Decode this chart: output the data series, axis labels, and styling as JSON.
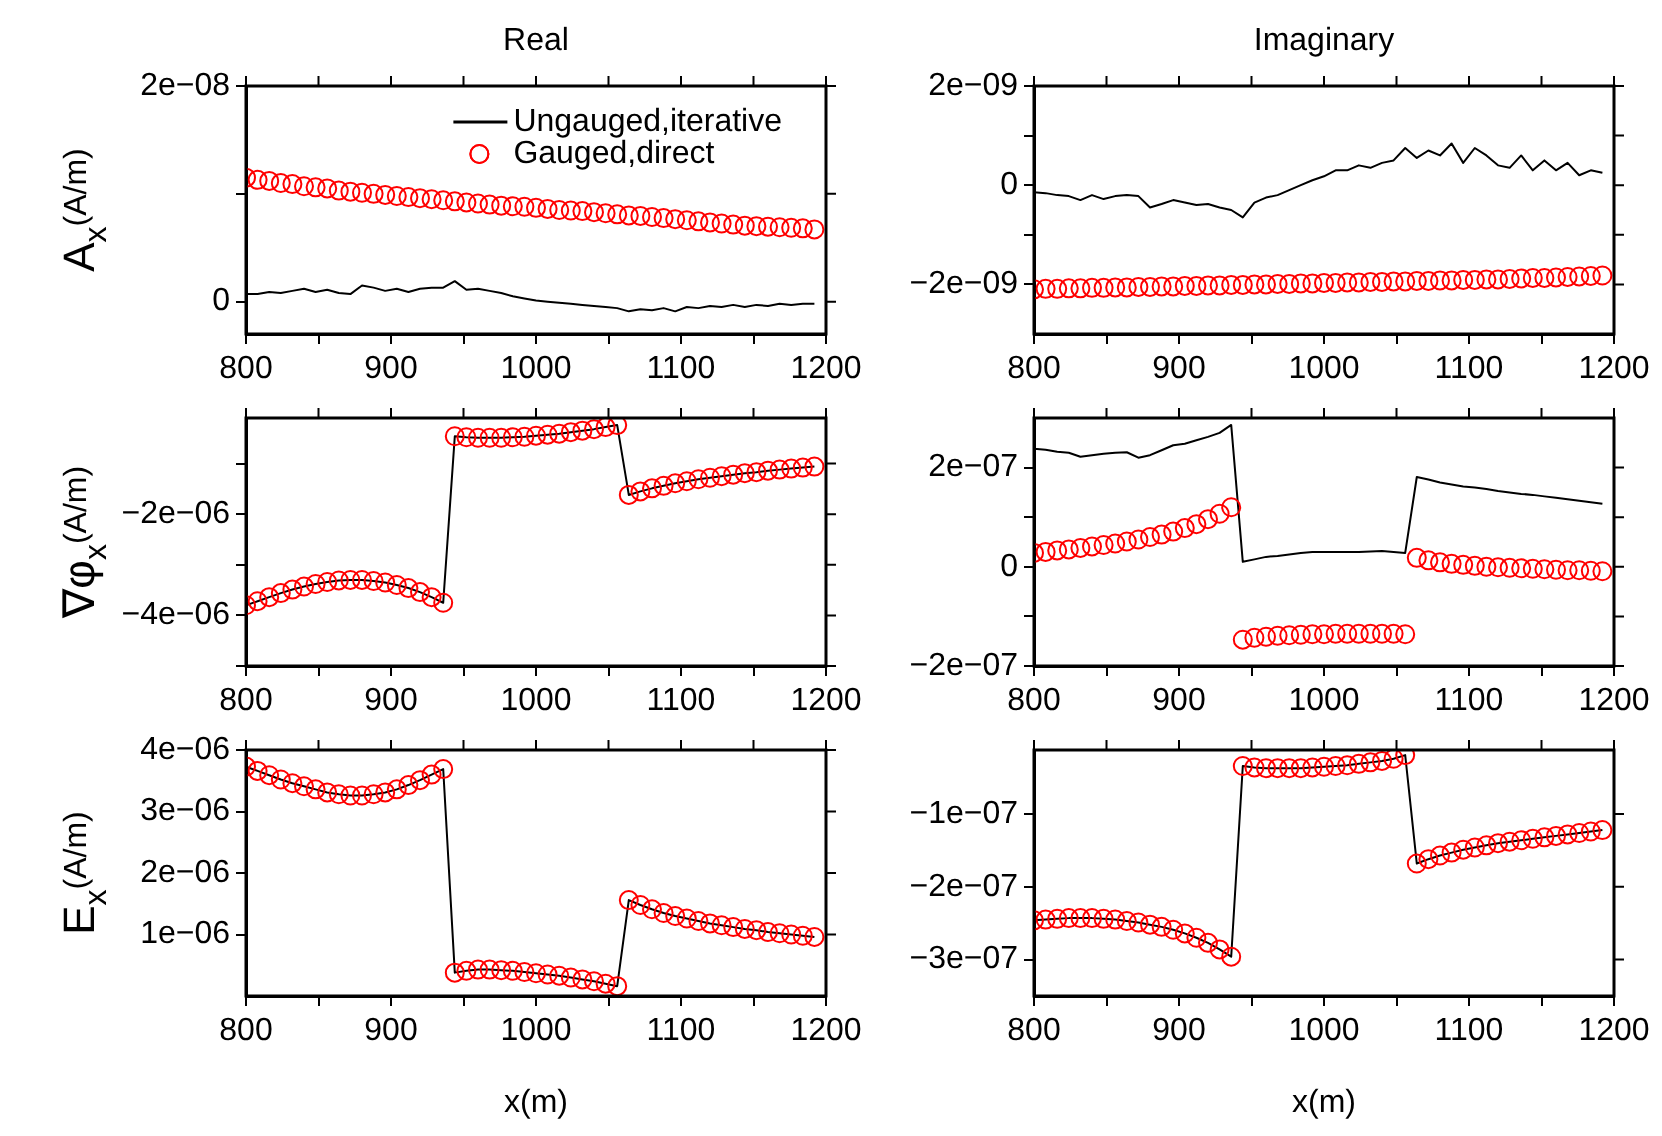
{
  "chart_data": [
    {
      "type": "line",
      "title": "Real",
      "ylabel": "A$_{x}$(A/m)",
      "legend": "top right",
      "x": [
        800,
        808,
        816,
        824,
        832,
        840,
        848,
        856,
        864,
        872,
        880,
        888,
        896,
        904,
        912,
        920,
        928,
        936,
        944,
        952,
        960,
        968,
        976,
        984,
        992,
        1000,
        1008,
        1016,
        1024,
        1032,
        1040,
        1048,
        1056,
        1064,
        1072,
        1080,
        1088,
        1096,
        1104,
        1112,
        1120,
        1128,
        1136,
        1144,
        1152,
        1160,
        1168,
        1176,
        1184,
        1192
      ],
      "xlim": [
        800,
        1200
      ],
      "xticks": [
        800,
        {
          "value": 850,
          "label": null
        },
        900,
        {
          "value": 950,
          "label": null
        },
        1000,
        {
          "value": 1050,
          "label": null
        },
        1100,
        {
          "value": 1150,
          "label": null
        },
        1200
      ],
      "ylim": [
        -3e-09,
        2e-08
      ],
      "yticks": [
        {
          "value": 0,
          "label": "0"
        },
        {
          "value": 1e-08,
          "label": null
        },
        {
          "value": 2e-08,
          "label": "2e−08"
        }
      ],
      "series": [
        {
          "name": "Ungauged,iterative",
          "type": "line",
          "color": "#000000",
          "marker": "none",
          "values": [
            7e-10,
            7e-10,
            9e-10,
            8e-10,
            1e-09,
            1.2e-09,
            9e-10,
            1.1e-09,
            8e-10,
            7e-10,
            1.5e-09,
            1.3e-09,
            1e-09,
            1.2e-09,
            9e-10,
            1.2e-09,
            1.3e-09,
            1.3e-09,
            1.9e-09,
            1.1e-09,
            1.2e-09,
            1e-09,
            8e-10,
            5e-10,
            3e-10,
            1e-10,
            0,
            -1e-10,
            -2e-10,
            -3e-10,
            -4e-10,
            -5e-10,
            -6e-10,
            -9e-10,
            -7e-10,
            -8e-10,
            -6e-10,
            -9e-10,
            -5e-10,
            -6e-10,
            -4e-10,
            -5e-10,
            -3e-10,
            -5e-10,
            -3e-10,
            -4e-10,
            -2e-10,
            -3e-10,
            -2e-10,
            -2e-10
          ]
        },
        {
          "name": "Gauged,direct",
          "type": "scatter",
          "color": "#ff0000",
          "marker": "circle",
          "values": [
            1.15e-08,
            1.13e-08,
            1.12e-08,
            1.1e-08,
            1.09e-08,
            1.07e-08,
            1.06e-08,
            1.05e-08,
            1.03e-08,
            1.02e-08,
            1.01e-08,
            1e-08,
            9.9e-09,
            9.8e-09,
            9.7e-09,
            9.6e-09,
            9.5e-09,
            9.4e-09,
            9.3e-09,
            9.2e-09,
            9.1e-09,
            9e-09,
            8.9e-09,
            8.85e-09,
            8.8e-09,
            8.7e-09,
            8.6e-09,
            8.5e-09,
            8.45e-09,
            8.4e-09,
            8.3e-09,
            8.2e-09,
            8.1e-09,
            8e-09,
            7.95e-09,
            7.85e-09,
            7.75e-09,
            7.65e-09,
            7.55e-09,
            7.45e-09,
            7.35e-09,
            7.25e-09,
            7.15e-09,
            7.05e-09,
            7e-09,
            6.95e-09,
            6.9e-09,
            6.85e-09,
            6.8e-09,
            6.7e-09
          ]
        }
      ]
    },
    {
      "type": "line",
      "title": "Imaginary",
      "x": [
        800,
        808,
        816,
        824,
        832,
        840,
        848,
        856,
        864,
        872,
        880,
        888,
        896,
        904,
        912,
        920,
        928,
        936,
        944,
        952,
        960,
        968,
        976,
        984,
        992,
        1000,
        1008,
        1016,
        1024,
        1032,
        1040,
        1048,
        1056,
        1064,
        1072,
        1080,
        1088,
        1096,
        1104,
        1112,
        1120,
        1128,
        1136,
        1144,
        1152,
        1160,
        1168,
        1176,
        1184,
        1192
      ],
      "xlim": [
        800,
        1200
      ],
      "xticks": [
        800,
        {
          "value": 850,
          "label": null
        },
        900,
        {
          "value": 950,
          "label": null
        },
        1000,
        {
          "value": 1050,
          "label": null
        },
        1100,
        {
          "value": 1150,
          "label": null
        },
        1200
      ],
      "ylim": [
        -3e-09,
        2e-09
      ],
      "yticks": [
        {
          "value": -2e-09,
          "label": "−2e−09"
        },
        {
          "value": -1e-09,
          "label": null
        },
        {
          "value": 0,
          "label": "0"
        },
        {
          "value": 1e-09,
          "label": null
        },
        {
          "value": 2e-09,
          "label": "2e−09"
        }
      ],
      "series": [
        {
          "type": "line",
          "color": "#000000",
          "marker": "none",
          "values": [
            -1.4e-10,
            -1.6e-10,
            -2e-10,
            -2.2e-10,
            -3e-10,
            -2e-10,
            -2.8e-10,
            -2.2e-10,
            -2e-10,
            -2.2e-10,
            -4.5e-10,
            -3.8e-10,
            -3e-10,
            -3.5e-10,
            -4e-10,
            -3.8e-10,
            -4.5e-10,
            -5e-10,
            -6.5e-10,
            -3.5e-10,
            -2.5e-10,
            -2e-10,
            -1e-10,
            0,
            1e-10,
            1.8e-10,
            3e-10,
            3e-10,
            4e-10,
            3.5e-10,
            4.5e-10,
            5e-10,
            7.5e-10,
            5.5e-10,
            7e-10,
            6e-10,
            8.4e-10,
            4.5e-10,
            7.5e-10,
            6e-10,
            4e-10,
            3.5e-10,
            6e-10,
            3e-10,
            5e-10,
            3e-10,
            4.5e-10,
            2e-10,
            3e-10,
            2.5e-10
          ]
        },
        {
          "type": "scatter",
          "color": "#ff0000",
          "marker": "circle",
          "values": [
            -2.1e-09,
            -2.09e-09,
            -2.09e-09,
            -2.08e-09,
            -2.08e-09,
            -2.07e-09,
            -2.07e-09,
            -2.06e-09,
            -2.06e-09,
            -2.05e-09,
            -2.05e-09,
            -2.04e-09,
            -2.04e-09,
            -2.03e-09,
            -2.03e-09,
            -2.02e-09,
            -2.02e-09,
            -2.01e-09,
            -2.01e-09,
            -2e-09,
            -2e-09,
            -1.99e-09,
            -1.99e-09,
            -1.98e-09,
            -1.98e-09,
            -1.97e-09,
            -1.97e-09,
            -1.96e-09,
            -1.96e-09,
            -1.95e-09,
            -1.95e-09,
            -1.94e-09,
            -1.94e-09,
            -1.93e-09,
            -1.93e-09,
            -1.92e-09,
            -1.92e-09,
            -1.91e-09,
            -1.91e-09,
            -1.9e-09,
            -1.9e-09,
            -1.89e-09,
            -1.88e-09,
            -1.87e-09,
            -1.87e-09,
            -1.86e-09,
            -1.85e-09,
            -1.84e-09,
            -1.83e-09,
            -1.82e-09
          ]
        }
      ]
    },
    {
      "type": "line",
      "ylabel": "∇φ$_{x}$(A/m)",
      "x": [
        800,
        808,
        816,
        824,
        832,
        840,
        848,
        856,
        864,
        872,
        880,
        888,
        896,
        904,
        912,
        920,
        928,
        936,
        944,
        952,
        960,
        968,
        976,
        984,
        992,
        1000,
        1008,
        1016,
        1024,
        1032,
        1040,
        1048,
        1056,
        1064,
        1072,
        1080,
        1088,
        1096,
        1104,
        1112,
        1120,
        1128,
        1136,
        1144,
        1152,
        1160,
        1168,
        1176,
        1184,
        1192
      ],
      "xlim": [
        800,
        1200
      ],
      "xticks": [
        800,
        {
          "value": 850,
          "label": null
        },
        900,
        {
          "value": 950,
          "label": null
        },
        1000,
        {
          "value": 1050,
          "label": null
        },
        1100,
        {
          "value": 1150,
          "label": null
        },
        1200
      ],
      "ylim": [
        -5e-06,
        -1e-07
      ],
      "yticks": [
        {
          "value": -5e-06,
          "label": null
        },
        {
          "value": -4e-06,
          "label": "−4e−06"
        },
        {
          "value": -3e-06,
          "label": null
        },
        {
          "value": -2e-06,
          "label": "−2e−06"
        },
        {
          "value": -1e-06,
          "label": null
        }
      ],
      "series": [
        {
          "type": "line",
          "color": "#000000",
          "marker": "none",
          "values": [
            -3.8e-06,
            -3.72e-06,
            -3.64e-06,
            -3.56e-06,
            -3.49e-06,
            -3.43e-06,
            -3.38e-06,
            -3.34e-06,
            -3.31e-06,
            -3.3e-06,
            -3.3e-06,
            -3.32e-06,
            -3.35e-06,
            -3.4e-06,
            -3.46e-06,
            -3.54e-06,
            -3.64e-06,
            -3.75e-06,
            -4.6e-07,
            -4.8e-07,
            -4.9e-07,
            -4.9e-07,
            -4.9e-07,
            -4.8e-07,
            -4.7e-07,
            -4.5e-07,
            -4.3e-07,
            -4.1e-07,
            -3.8e-07,
            -3.5e-07,
            -3.2e-07,
            -2.8e-07,
            -2.4e-07,
            -1.62e-06,
            -1.55e-06,
            -1.49e-06,
            -1.44e-06,
            -1.39e-06,
            -1.35e-06,
            -1.31e-06,
            -1.28e-06,
            -1.25e-06,
            -1.22e-06,
            -1.19e-06,
            -1.17e-06,
            -1.14e-06,
            -1.12e-06,
            -1.1e-06,
            -1.08e-06,
            -1.06e-06
          ]
        },
        {
          "type": "scatter",
          "color": "#ff0000",
          "marker": "circle",
          "values": [
            -3.8e-06,
            -3.72e-06,
            -3.64e-06,
            -3.56e-06,
            -3.49e-06,
            -3.43e-06,
            -3.38e-06,
            -3.34e-06,
            -3.31e-06,
            -3.3e-06,
            -3.3e-06,
            -3.32e-06,
            -3.35e-06,
            -3.4e-06,
            -3.46e-06,
            -3.54e-06,
            -3.64e-06,
            -3.75e-06,
            -4.6e-07,
            -4.8e-07,
            -4.9e-07,
            -4.9e-07,
            -4.9e-07,
            -4.8e-07,
            -4.7e-07,
            -4.5e-07,
            -4.3e-07,
            -4.1e-07,
            -3.8e-07,
            -3.5e-07,
            -3.2e-07,
            -2.8e-07,
            -2.4e-07,
            -1.62e-06,
            -1.55e-06,
            -1.49e-06,
            -1.44e-06,
            -1.39e-06,
            -1.35e-06,
            -1.31e-06,
            -1.28e-06,
            -1.25e-06,
            -1.22e-06,
            -1.19e-06,
            -1.17e-06,
            -1.14e-06,
            -1.12e-06,
            -1.1e-06,
            -1.08e-06,
            -1.06e-06
          ]
        }
      ]
    },
    {
      "type": "line",
      "x": [
        800,
        808,
        816,
        824,
        832,
        840,
        848,
        856,
        864,
        872,
        880,
        888,
        896,
        904,
        912,
        920,
        928,
        936,
        944,
        952,
        960,
        968,
        976,
        984,
        992,
        1000,
        1008,
        1016,
        1024,
        1032,
        1040,
        1048,
        1056,
        1064,
        1072,
        1080,
        1088,
        1096,
        1104,
        1112,
        1120,
        1128,
        1136,
        1144,
        1152,
        1160,
        1168,
        1176,
        1184,
        1192
      ],
      "xlim": [
        800,
        1200
      ],
      "xticks": [
        800,
        {
          "value": 850,
          "label": null
        },
        900,
        {
          "value": 950,
          "label": null
        },
        1000,
        {
          "value": 1050,
          "label": null
        },
        1100,
        {
          "value": 1150,
          "label": null
        },
        1200
      ],
      "ylim": [
        -2e-07,
        3e-07
      ],
      "yticks": [
        {
          "value": -2e-07,
          "label": "−2e−07"
        },
        {
          "value": -1e-07,
          "label": null
        },
        {
          "value": 0,
          "label": "0"
        },
        {
          "value": 1e-07,
          "label": null
        },
        {
          "value": 2e-07,
          "label": "2e−07"
        }
      ],
      "series": [
        {
          "type": "line",
          "color": "#000000",
          "marker": "none",
          "values": [
            2.38e-07,
            2.36e-07,
            2.32e-07,
            2.3e-07,
            2.22e-07,
            2.25e-07,
            2.28e-07,
            2.3e-07,
            2.31e-07,
            2.2e-07,
            2.25e-07,
            2.35e-07,
            2.45e-07,
            2.48e-07,
            2.55e-07,
            2.62e-07,
            2.7e-07,
            2.86e-07,
            1e-08,
            1.5e-08,
            2e-08,
            2.2e-08,
            2.5e-08,
            2.8e-08,
            3e-08,
            3e-08,
            3e-08,
            3e-08,
            3e-08,
            3.1e-08,
            3.2e-08,
            3e-08,
            2.8e-08,
            1.81e-07,
            1.76e-07,
            1.7e-07,
            1.66e-07,
            1.62e-07,
            1.6e-07,
            1.57e-07,
            1.53e-07,
            1.5e-07,
            1.47e-07,
            1.45e-07,
            1.42e-07,
            1.39e-07,
            1.36e-07,
            1.33e-07,
            1.3e-07,
            1.27e-07
          ]
        },
        {
          "type": "scatter",
          "color": "#ff0000",
          "marker": "circle",
          "values": [
            2.8e-08,
            3e-08,
            3.3e-08,
            3.5e-08,
            3.8e-08,
            4.1e-08,
            4.4e-08,
            4.7e-08,
            5.1e-08,
            5.5e-08,
            6e-08,
            6.5e-08,
            7.1e-08,
            7.8e-08,
            8.6e-08,
            9.6e-08,
            1.07e-07,
            1.2e-07,
            -1.47e-07,
            -1.43e-07,
            -1.41e-07,
            -1.39e-07,
            -1.38e-07,
            -1.37e-07,
            -1.36e-07,
            -1.36e-07,
            -1.35e-07,
            -1.35e-07,
            -1.35e-07,
            -1.35e-07,
            -1.35e-07,
            -1.35e-07,
            -1.36e-07,
            1.8e-08,
            1.3e-08,
            9e-09,
            6e-09,
            4e-09,
            2e-09,
            0,
            -1e-09,
            -2e-09,
            -3e-09,
            -4e-09,
            -5e-09,
            -6e-09,
            -7e-09,
            -7e-09,
            -8e-09,
            -9e-09
          ]
        }
      ]
    },
    {
      "type": "line",
      "ylabel": "E$_{x}$(A/m)",
      "xlabel": "x(m)",
      "x": [
        800,
        808,
        816,
        824,
        832,
        840,
        848,
        856,
        864,
        872,
        880,
        888,
        896,
        904,
        912,
        920,
        928,
        936,
        944,
        952,
        960,
        968,
        976,
        984,
        992,
        1000,
        1008,
        1016,
        1024,
        1032,
        1040,
        1048,
        1056,
        1064,
        1072,
        1080,
        1088,
        1096,
        1104,
        1112,
        1120,
        1128,
        1136,
        1144,
        1152,
        1160,
        1168,
        1176,
        1184,
        1192
      ],
      "xlim": [
        800,
        1200
      ],
      "xticks": [
        800,
        {
          "value": 850,
          "label": null
        },
        900,
        {
          "value": 950,
          "label": null
        },
        1000,
        {
          "value": 1050,
          "label": null
        },
        1100,
        {
          "value": 1150,
          "label": null
        },
        1200
      ],
      "ylim": [
        0,
        4e-06
      ],
      "yticks": [
        {
          "value": 1e-06,
          "label": "1e−06"
        },
        {
          "value": 2e-06,
          "label": "2e−06"
        },
        {
          "value": 3e-06,
          "label": "3e−06"
        },
        {
          "value": 4e-06,
          "label": "4e−06"
        }
      ],
      "series": [
        {
          "type": "line",
          "color": "#000000",
          "marker": "none",
          "values": [
            3.73e-06,
            3.66e-06,
            3.59e-06,
            3.52e-06,
            3.46e-06,
            3.41e-06,
            3.36e-06,
            3.31e-06,
            3.28e-06,
            3.26e-06,
            3.26e-06,
            3.28e-06,
            3.31e-06,
            3.36e-06,
            3.43e-06,
            3.51e-06,
            3.6e-06,
            3.69e-06,
            3.8e-07,
            4.1e-07,
            4.3e-07,
            4.3e-07,
            4.2e-07,
            4.1e-07,
            3.9e-07,
            3.7e-07,
            3.5e-07,
            3.3e-07,
            3e-07,
            2.7e-07,
            2.4e-07,
            2e-07,
            1.6e-07,
            1.56e-06,
            1.48e-06,
            1.41e-06,
            1.35e-06,
            1.3e-06,
            1.26e-06,
            1.22e-06,
            1.18e-06,
            1.15e-06,
            1.12e-06,
            1.09e-06,
            1.07e-06,
            1.04e-06,
            1.02e-06,
            1e-06,
            9.8e-07,
            9.6e-07
          ]
        },
        {
          "type": "scatter",
          "color": "#ff0000",
          "marker": "circle",
          "values": [
            3.73e-06,
            3.66e-06,
            3.59e-06,
            3.52e-06,
            3.46e-06,
            3.41e-06,
            3.36e-06,
            3.31e-06,
            3.28e-06,
            3.26e-06,
            3.26e-06,
            3.28e-06,
            3.31e-06,
            3.36e-06,
            3.43e-06,
            3.51e-06,
            3.6e-06,
            3.69e-06,
            3.8e-07,
            4.1e-07,
            4.3e-07,
            4.3e-07,
            4.2e-07,
            4.1e-07,
            3.9e-07,
            3.7e-07,
            3.5e-07,
            3.3e-07,
            3e-07,
            2.7e-07,
            2.4e-07,
            2e-07,
            1.6e-07,
            1.56e-06,
            1.48e-06,
            1.41e-06,
            1.35e-06,
            1.3e-06,
            1.26e-06,
            1.22e-06,
            1.18e-06,
            1.15e-06,
            1.12e-06,
            1.09e-06,
            1.07e-06,
            1.04e-06,
            1.02e-06,
            1e-06,
            9.8e-07,
            9.6e-07
          ]
        }
      ]
    },
    {
      "type": "line",
      "xlabel": "x(m)",
      "x": [
        800,
        808,
        816,
        824,
        832,
        840,
        848,
        856,
        864,
        872,
        880,
        888,
        896,
        904,
        912,
        920,
        928,
        936,
        944,
        952,
        960,
        968,
        976,
        984,
        992,
        1000,
        1008,
        1016,
        1024,
        1032,
        1040,
        1048,
        1056,
        1064,
        1072,
        1080,
        1088,
        1096,
        1104,
        1112,
        1120,
        1128,
        1136,
        1144,
        1152,
        1160,
        1168,
        1176,
        1184,
        1192
      ],
      "xlim": [
        800,
        1200
      ],
      "xticks": [
        800,
        {
          "value": 850,
          "label": null
        },
        900,
        {
          "value": 950,
          "label": null
        },
        1000,
        {
          "value": 1050,
          "label": null
        },
        1100,
        {
          "value": 1150,
          "label": null
        },
        1200
      ],
      "ylim": [
        -3.5e-07,
        -1.2e-08
      ],
      "yticks": [
        {
          "value": -3e-07,
          "label": "−3e−07"
        },
        {
          "value": -2e-07,
          "label": "−2e−07"
        },
        {
          "value": -1e-07,
          "label": "−1e−07"
        }
      ],
      "series": [
        {
          "type": "line",
          "color": "#000000",
          "marker": "none",
          "values": [
            -2.46e-07,
            -2.45e-07,
            -2.44e-07,
            -2.43e-07,
            -2.43e-07,
            -2.43e-07,
            -2.44e-07,
            -2.45e-07,
            -2.47e-07,
            -2.49e-07,
            -2.52e-07,
            -2.55e-07,
            -2.59e-07,
            -2.64e-07,
            -2.7e-07,
            -2.77e-07,
            -2.86e-07,
            -2.96e-07,
            -3.4e-08,
            -3.6e-08,
            -3.7e-08,
            -3.7e-08,
            -3.7e-08,
            -3.7e-08,
            -3.6e-08,
            -3.5e-08,
            -3.4e-08,
            -3.3e-08,
            -3.1e-08,
            -2.9e-08,
            -2.7e-08,
            -2.4e-08,
            -1.9e-08,
            -1.68e-07,
            -1.62e-07,
            -1.57e-07,
            -1.53e-07,
            -1.49e-07,
            -1.46e-07,
            -1.43e-07,
            -1.4e-07,
            -1.38e-07,
            -1.36e-07,
            -1.34e-07,
            -1.32e-07,
            -1.3e-07,
            -1.28e-07,
            -1.26e-07,
            -1.24e-07,
            -1.22e-07
          ]
        },
        {
          "type": "scatter",
          "color": "#ff0000",
          "marker": "circle",
          "values": [
            -2.46e-07,
            -2.45e-07,
            -2.44e-07,
            -2.43e-07,
            -2.43e-07,
            -2.43e-07,
            -2.44e-07,
            -2.45e-07,
            -2.47e-07,
            -2.49e-07,
            -2.52e-07,
            -2.55e-07,
            -2.59e-07,
            -2.64e-07,
            -2.7e-07,
            -2.77e-07,
            -2.86e-07,
            -2.96e-07,
            -3.4e-08,
            -3.6e-08,
            -3.7e-08,
            -3.7e-08,
            -3.7e-08,
            -3.7e-08,
            -3.6e-08,
            -3.5e-08,
            -3.4e-08,
            -3.3e-08,
            -3.1e-08,
            -2.9e-08,
            -2.7e-08,
            -2.4e-08,
            -1.9e-08,
            -1.68e-07,
            -1.62e-07,
            -1.57e-07,
            -1.53e-07,
            -1.49e-07,
            -1.46e-07,
            -1.43e-07,
            -1.4e-07,
            -1.38e-07,
            -1.36e-07,
            -1.34e-07,
            -1.32e-07,
            -1.3e-07,
            -1.28e-07,
            -1.26e-07,
            -1.24e-07,
            -1.22e-07
          ]
        }
      ]
    }
  ]
}
